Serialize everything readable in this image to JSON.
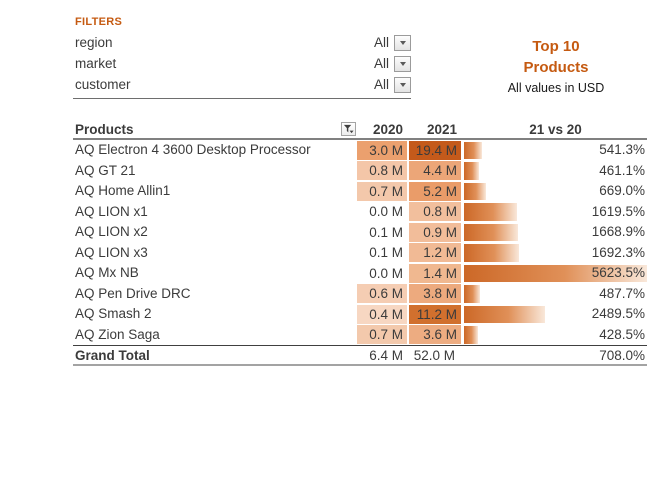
{
  "colors": {
    "accent_orange": "#C55A11",
    "text": "#3B3B3B",
    "bar_gradient_start": "#CC6827",
    "bar_gradient_end": "#F9E8DA",
    "header_rule_grey": "#808080"
  },
  "filters": {
    "title": "FILTERS",
    "rows": [
      {
        "label": "region",
        "value": "All"
      },
      {
        "label": "market",
        "value": "All"
      },
      {
        "label": "customer",
        "value": "All"
      }
    ]
  },
  "report_header": {
    "title_line1": "Top 10",
    "title_line2": "Products",
    "subtitle": "All values in USD"
  },
  "table": {
    "columns": {
      "products": "Products",
      "y2020": "2020",
      "y2021": "2021",
      "delta": "21 vs 20"
    },
    "max_pct": 5623.5,
    "rows": [
      {
        "name": "AQ Electron 4 3600 Desktop Processor",
        "v2020": "3.0 M",
        "v2021": "19.4 M",
        "delta": "541.3%",
        "pct": 541.3,
        "bg2020": "#EBA06E",
        "bg2021": "#C45A1B"
      },
      {
        "name": "AQ GT 21",
        "v2020": "0.8 M",
        "v2021": "4.4 M",
        "delta": "461.1%",
        "pct": 461.1,
        "bg2020": "#F4C6A8",
        "bg2021": "#ECA678"
      },
      {
        "name": "AQ Home Allin1",
        "v2020": "0.7 M",
        "v2021": "5.2 M",
        "delta": "669.0%",
        "pct": 669.0,
        "bg2020": "#F3C8AB",
        "bg2021": "#EA9C69"
      },
      {
        "name": "AQ LION x1",
        "v2020": "0.0 M",
        "v2021": "0.8 M",
        "delta": "1619.5%",
        "pct": 1619.5,
        "bg2020": "",
        "bg2021": "#F2BF9D"
      },
      {
        "name": "AQ LION x2",
        "v2020": "0.1 M",
        "v2021": "0.9 M",
        "delta": "1668.9%",
        "pct": 1668.9,
        "bg2020": "",
        "bg2021": "#F2BD9A"
      },
      {
        "name": "AQ LION x3",
        "v2020": "0.1 M",
        "v2021": "1.2 M",
        "delta": "1692.3%",
        "pct": 1692.3,
        "bg2020": "",
        "bg2021": "#F1BA95"
      },
      {
        "name": "AQ Mx NB",
        "v2020": "0.0 M",
        "v2021": "1.4 M",
        "delta": "5623.5%",
        "pct": 5623.5,
        "bg2020": "",
        "bg2021": "#F0B890"
      },
      {
        "name": "AQ Pen Drive DRC",
        "v2020": "0.6 M",
        "v2021": "3.8 M",
        "delta": "487.7%",
        "pct": 487.7,
        "bg2020": "#F5CDB3",
        "bg2021": "#EDAA7E"
      },
      {
        "name": "AQ Smash 2",
        "v2020": "0.4 M",
        "v2021": "11.2 M",
        "delta": "2489.5%",
        "pct": 2489.5,
        "bg2020": "#F7D7C2",
        "bg2021": "#D1702E"
      },
      {
        "name": "AQ Zion Saga",
        "v2020": "0.7 M",
        "v2021": "3.6 M",
        "delta": "428.5%",
        "pct": 428.5,
        "bg2020": "#F3C9AC",
        "bg2021": "#EDAC81"
      }
    ],
    "total": {
      "name": "Grand Total",
      "v2020": "6.4 M",
      "v2021": "52.0 M",
      "delta": "708.0%"
    }
  }
}
